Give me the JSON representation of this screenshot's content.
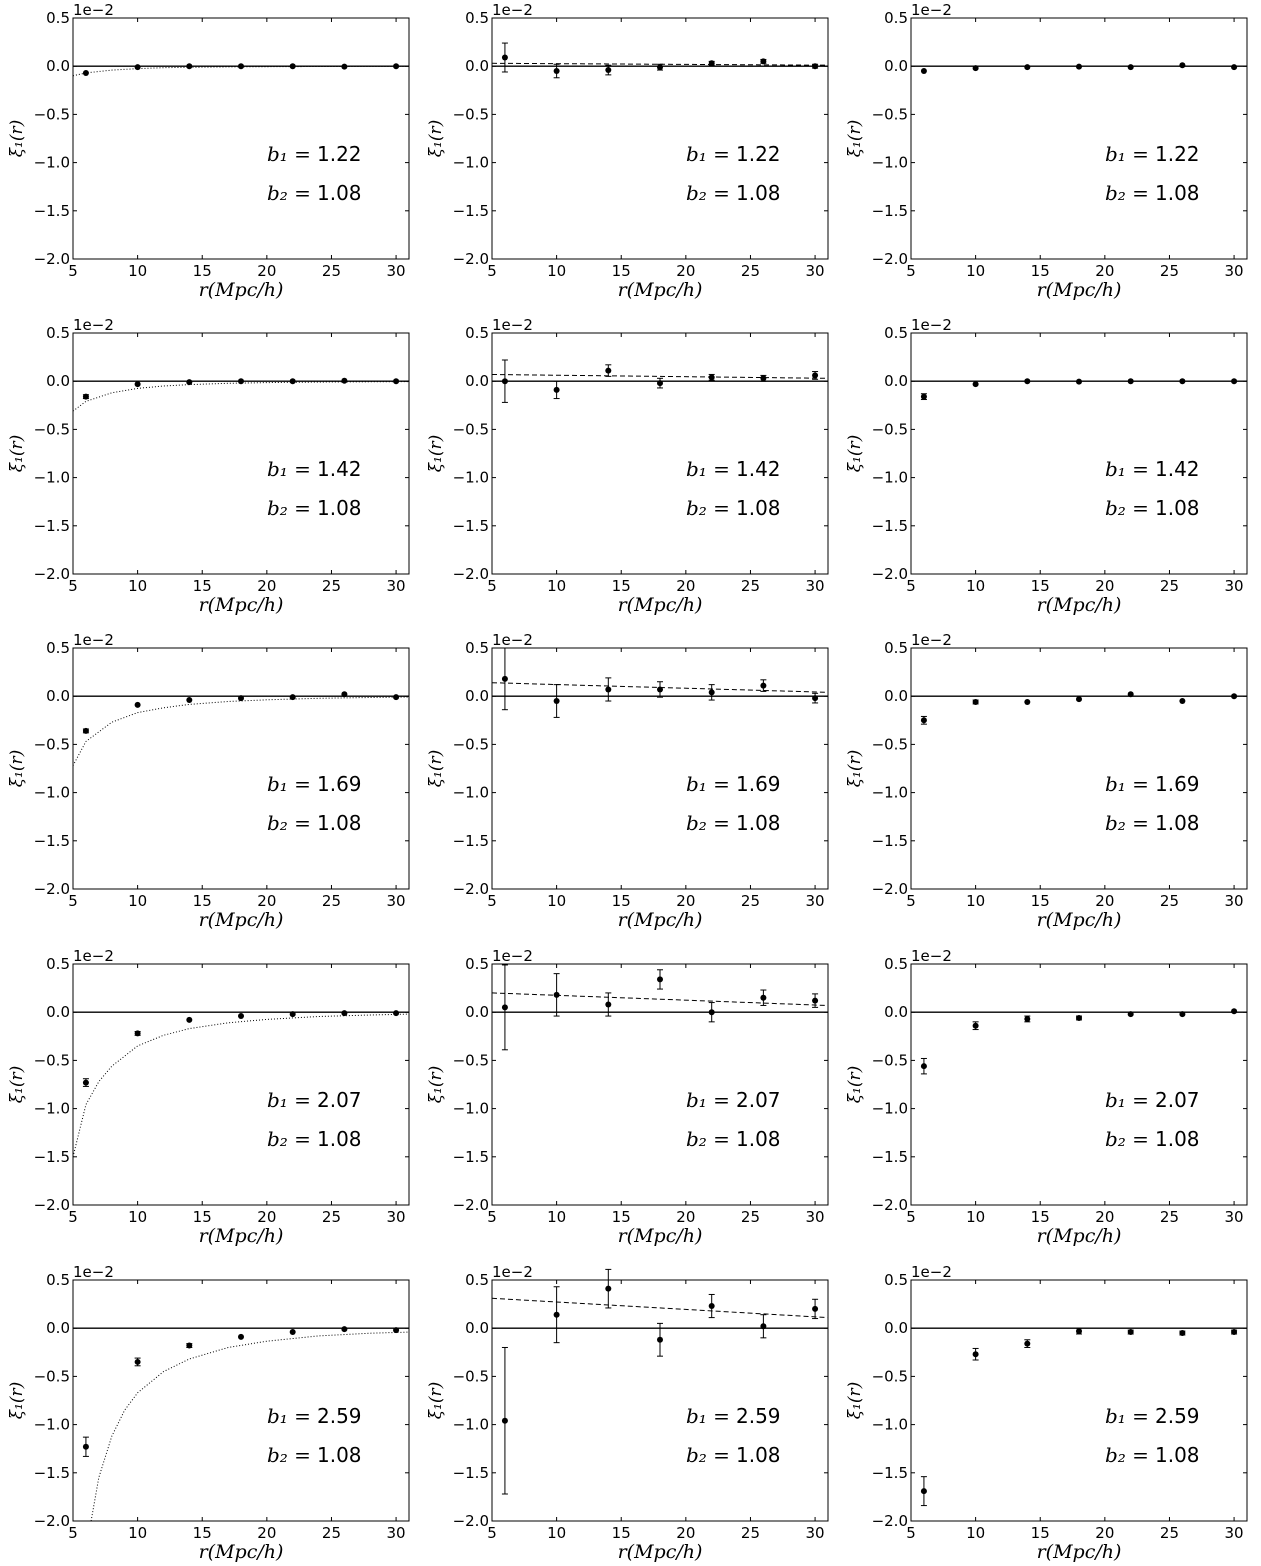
{
  "figure": {
    "x_axis_label": "r(Mpc/h)",
    "y_axis_label": "ξ₁(r)",
    "offset_text": "1e−2",
    "x_ticks": [
      "5",
      "10",
      "15",
      "20",
      "25",
      "30"
    ],
    "y_ticks": [
      "0.5",
      "0.0",
      "−0.5",
      "−1.0",
      "−1.5",
      "−2.0"
    ],
    "b1_label": "b₁ =",
    "b2_label": "b₂ =",
    "b1_values": [
      "1.22",
      "1.42",
      "1.69",
      "2.07",
      "2.59"
    ],
    "b2_value": "1.08"
  },
  "chart_data": [
    {
      "type": "scatter",
      "row": 0,
      "col": 0,
      "xlim": [
        5,
        31
      ],
      "ylim": [
        -2.0,
        0.5
      ],
      "grid": false,
      "y_scale_factor": "1e-2",
      "x": [
        6,
        10,
        14,
        18,
        22,
        26,
        30
      ],
      "y": [
        -0.07,
        -0.01,
        0.0,
        0.0,
        0.0,
        -0.005,
        0.0
      ],
      "yerr": [
        0.01,
        0.01,
        0.01,
        0.01,
        0.01,
        0.01,
        0.01
      ],
      "model_line": {
        "style": "dotted",
        "x": [
          5,
          6,
          8,
          10,
          12,
          14,
          17,
          20,
          24,
          28,
          31
        ],
        "y": [
          -0.1,
          -0.07,
          -0.04,
          -0.025,
          -0.016,
          -0.011,
          -0.007,
          -0.005,
          -0.003,
          -0.002,
          -0.0015
        ]
      }
    },
    {
      "type": "scatter",
      "row": 0,
      "col": 1,
      "xlim": [
        5,
        31
      ],
      "ylim": [
        -2.0,
        0.5
      ],
      "grid": false,
      "y_scale_factor": "1e-2",
      "x": [
        6,
        10,
        14,
        18,
        22,
        26,
        30
      ],
      "y": [
        0.09,
        -0.05,
        -0.04,
        -0.01,
        0.03,
        0.05,
        0.0
      ],
      "yerr": [
        0.15,
        0.07,
        0.05,
        0.03,
        0.02,
        0.02,
        0.02
      ],
      "model_line": {
        "style": "dashed",
        "x": [
          5,
          31
        ],
        "y": [
          0.03,
          0.01
        ]
      }
    },
    {
      "type": "scatter",
      "row": 0,
      "col": 2,
      "xlim": [
        5,
        31
      ],
      "ylim": [
        -2.0,
        0.5
      ],
      "grid": false,
      "y_scale_factor": "1e-2",
      "x": [
        6,
        10,
        14,
        18,
        22,
        26,
        30
      ],
      "y": [
        -0.05,
        -0.02,
        -0.01,
        -0.005,
        -0.01,
        0.01,
        -0.01
      ],
      "yerr": [
        0.01,
        0.01,
        0.01,
        0.01,
        0.01,
        0.01,
        0.01
      ]
    },
    {
      "type": "scatter",
      "row": 1,
      "col": 0,
      "xlim": [
        5,
        31
      ],
      "ylim": [
        -2.0,
        0.5
      ],
      "grid": false,
      "y_scale_factor": "1e-2",
      "x": [
        6,
        10,
        14,
        18,
        22,
        26,
        30
      ],
      "y": [
        -0.16,
        -0.03,
        -0.01,
        0.0,
        0.0,
        0.005,
        0.0
      ],
      "yerr": [
        0.02,
        0.01,
        0.01,
        0.01,
        0.01,
        0.01,
        0.01
      ],
      "model_line": {
        "style": "dotted",
        "x": [
          5,
          6,
          8,
          10,
          12,
          14,
          17,
          20,
          24,
          28,
          31
        ],
        "y": [
          -0.31,
          -0.21,
          -0.12,
          -0.075,
          -0.05,
          -0.035,
          -0.022,
          -0.015,
          -0.009,
          -0.006,
          -0.004
        ]
      }
    },
    {
      "type": "scatter",
      "row": 1,
      "col": 1,
      "xlim": [
        5,
        31
      ],
      "ylim": [
        -2.0,
        0.5
      ],
      "grid": false,
      "y_scale_factor": "1e-2",
      "x": [
        6,
        10,
        14,
        18,
        22,
        26,
        30
      ],
      "y": [
        0.0,
        -0.09,
        0.11,
        -0.02,
        0.04,
        0.03,
        0.06
      ],
      "yerr": [
        0.22,
        0.09,
        0.06,
        0.05,
        0.03,
        0.03,
        0.04
      ],
      "model_line": {
        "style": "dashed",
        "x": [
          5,
          31
        ],
        "y": [
          0.07,
          0.03
        ]
      }
    },
    {
      "type": "scatter",
      "row": 1,
      "col": 2,
      "xlim": [
        5,
        31
      ],
      "ylim": [
        -2.0,
        0.5
      ],
      "grid": false,
      "y_scale_factor": "1e-2",
      "x": [
        6,
        10,
        14,
        18,
        22,
        26,
        30
      ],
      "y": [
        -0.16,
        -0.03,
        0.0,
        -0.005,
        0.0,
        0.0,
        0.0
      ],
      "yerr": [
        0.03,
        0.01,
        0.01,
        0.01,
        0.01,
        0.01,
        0.01
      ]
    },
    {
      "type": "scatter",
      "row": 2,
      "col": 0,
      "xlim": [
        5,
        31
      ],
      "ylim": [
        -2.0,
        0.5
      ],
      "grid": false,
      "y_scale_factor": "1e-2",
      "x": [
        6,
        10,
        14,
        18,
        22,
        26,
        30
      ],
      "y": [
        -0.36,
        -0.09,
        -0.04,
        -0.02,
        -0.01,
        0.02,
        -0.01
      ],
      "yerr": [
        0.02,
        0.01,
        0.01,
        0.01,
        0.01,
        0.01,
        0.01
      ],
      "model_line": {
        "style": "dotted",
        "x": [
          5,
          6,
          8,
          10,
          12,
          14,
          17,
          20,
          24,
          28,
          31
        ],
        "y": [
          -0.72,
          -0.47,
          -0.27,
          -0.17,
          -0.12,
          -0.085,
          -0.055,
          -0.037,
          -0.022,
          -0.014,
          -0.009
        ]
      }
    },
    {
      "type": "scatter",
      "row": 2,
      "col": 1,
      "xlim": [
        5,
        31
      ],
      "ylim": [
        -2.0,
        0.5
      ],
      "grid": false,
      "y_scale_factor": "1e-2",
      "x": [
        6,
        10,
        14,
        18,
        22,
        26,
        30
      ],
      "y": [
        0.18,
        -0.05,
        0.07,
        0.07,
        0.04,
        0.11,
        -0.02
      ],
      "yerr": [
        0.32,
        0.17,
        0.12,
        0.08,
        0.08,
        0.06,
        0.05
      ],
      "model_line": {
        "style": "dashed",
        "x": [
          5,
          31
        ],
        "y": [
          0.14,
          0.04
        ]
      }
    },
    {
      "type": "scatter",
      "row": 2,
      "col": 2,
      "xlim": [
        5,
        31
      ],
      "ylim": [
        -2.0,
        0.5
      ],
      "grid": false,
      "y_scale_factor": "1e-2",
      "x": [
        6,
        10,
        14,
        18,
        22,
        26,
        30
      ],
      "y": [
        -0.25,
        -0.06,
        -0.06,
        -0.03,
        0.02,
        -0.05,
        0.0
      ],
      "yerr": [
        0.04,
        0.02,
        0.01,
        0.01,
        0.01,
        0.01,
        0.01
      ]
    },
    {
      "type": "scatter",
      "row": 3,
      "col": 0,
      "xlim": [
        5,
        31
      ],
      "ylim": [
        -2.0,
        0.5
      ],
      "grid": false,
      "y_scale_factor": "1e-2",
      "x": [
        6,
        10,
        14,
        18,
        22,
        26,
        30
      ],
      "y": [
        -0.73,
        -0.22,
        -0.08,
        -0.04,
        -0.02,
        -0.01,
        -0.01
      ],
      "yerr": [
        0.04,
        0.02,
        0.01,
        0.01,
        0.01,
        0.01,
        0.01
      ],
      "model_line": {
        "style": "dotted",
        "x": [
          5,
          6,
          7,
          8,
          10,
          12,
          14,
          17,
          20,
          24,
          28,
          31
        ],
        "y": [
          -1.5,
          -0.96,
          -0.72,
          -0.56,
          -0.35,
          -0.24,
          -0.17,
          -0.11,
          -0.075,
          -0.045,
          -0.029,
          -0.02
        ]
      }
    },
    {
      "type": "scatter",
      "row": 3,
      "col": 1,
      "xlim": [
        5,
        31
      ],
      "ylim": [
        -2.0,
        0.5
      ],
      "grid": false,
      "y_scale_factor": "1e-2",
      "x": [
        6,
        10,
        14,
        18,
        22,
        26,
        30
      ],
      "y": [
        0.05,
        0.18,
        0.08,
        0.34,
        0.0,
        0.15,
        0.12
      ],
      "yerr": [
        0.44,
        0.22,
        0.12,
        0.1,
        0.1,
        0.08,
        0.07
      ],
      "model_line": {
        "style": "dashed",
        "x": [
          5,
          31
        ],
        "y": [
          0.2,
          0.07
        ]
      }
    },
    {
      "type": "scatter",
      "row": 3,
      "col": 2,
      "xlim": [
        5,
        31
      ],
      "ylim": [
        -2.0,
        0.5
      ],
      "grid": false,
      "y_scale_factor": "1e-2",
      "x": [
        6,
        10,
        14,
        18,
        22,
        26,
        30
      ],
      "y": [
        -0.56,
        -0.14,
        -0.07,
        -0.06,
        -0.02,
        -0.02,
        0.01
      ],
      "yerr": [
        0.08,
        0.04,
        0.03,
        0.02,
        0.01,
        0.01,
        0.01
      ]
    },
    {
      "type": "scatter",
      "row": 4,
      "col": 0,
      "xlim": [
        5,
        31
      ],
      "ylim": [
        -2.0,
        0.5
      ],
      "grid": false,
      "y_scale_factor": "1e-2",
      "x": [
        6,
        10,
        14,
        18,
        22,
        26,
        30
      ],
      "y": [
        -1.23,
        -0.35,
        -0.18,
        -0.09,
        -0.04,
        -0.01,
        -0.02
      ],
      "yerr": [
        0.1,
        0.04,
        0.02,
        0.01,
        0.01,
        0.01,
        0.01
      ],
      "model_line": {
        "style": "dotted",
        "x": [
          6.4,
          7,
          8,
          9,
          10,
          12,
          14,
          17,
          20,
          24,
          28,
          31
        ],
        "y": [
          -2.0,
          -1.55,
          -1.12,
          -0.85,
          -0.67,
          -0.45,
          -0.32,
          -0.2,
          -0.135,
          -0.08,
          -0.052,
          -0.04
        ]
      }
    },
    {
      "type": "scatter",
      "row": 4,
      "col": 1,
      "xlim": [
        5,
        31
      ],
      "ylim": [
        -2.0,
        0.5
      ],
      "grid": false,
      "y_scale_factor": "1e-2",
      "x": [
        6,
        10,
        14,
        18,
        22,
        26,
        30
      ],
      "y": [
        -0.96,
        0.14,
        0.41,
        -0.12,
        0.23,
        0.02,
        0.2
      ],
      "yerr": [
        0.76,
        0.29,
        0.2,
        0.17,
        0.12,
        0.12,
        0.1
      ],
      "model_line": {
        "style": "dashed",
        "x": [
          5,
          31
        ],
        "y": [
          0.31,
          0.11
        ]
      }
    },
    {
      "type": "scatter",
      "row": 4,
      "col": 2,
      "xlim": [
        5,
        31
      ],
      "ylim": [
        -2.0,
        0.5
      ],
      "grid": false,
      "y_scale_factor": "1e-2",
      "x": [
        6,
        10,
        14,
        18,
        22,
        26,
        30
      ],
      "y": [
        -1.69,
        -0.27,
        -0.16,
        -0.03,
        -0.04,
        -0.05,
        -0.04
      ],
      "yerr": [
        0.15,
        0.06,
        0.04,
        0.03,
        0.02,
        0.02,
        0.02
      ]
    }
  ]
}
